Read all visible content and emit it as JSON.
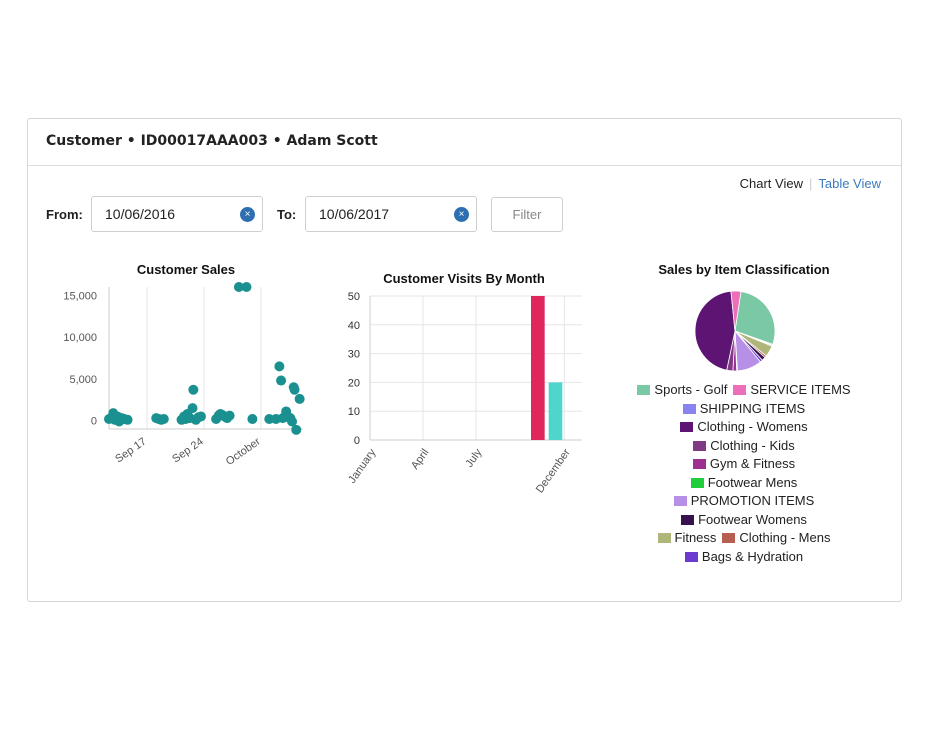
{
  "header": {
    "title": "Customer • ID00017AAA003 • Adam Scott"
  },
  "view_toggle": {
    "chart_view": "Chart View",
    "separator": "|",
    "table_view": "Table View"
  },
  "filters": {
    "from_label": "From:",
    "from_value": "10/06/2016",
    "to_label": "To:",
    "to_value": "10/06/2017",
    "clear_icon": "×",
    "filter_label": "Filter"
  },
  "chart_data": [
    {
      "type": "scatter",
      "title": "Customer Sales",
      "x_ticks": [
        "Sep 17",
        "Sep 24",
        "October"
      ],
      "y_ticks": [
        "0",
        "5,000",
        "10,000",
        "15,000"
      ],
      "ylim": [
        -1000,
        16000
      ],
      "color": "#1a9090",
      "points": [
        [
          0.0,
          200
        ],
        [
          0.5,
          900
        ],
        [
          0.7,
          100
        ],
        [
          1.0,
          500
        ],
        [
          1.2,
          -100
        ],
        [
          1.5,
          300
        ],
        [
          1.8,
          200
        ],
        [
          2.2,
          100
        ],
        [
          5.6,
          300
        ],
        [
          5.9,
          200
        ],
        [
          6.2,
          100
        ],
        [
          6.5,
          200
        ],
        [
          8.6,
          100
        ],
        [
          8.9,
          500
        ],
        [
          9.1,
          200
        ],
        [
          9.3,
          800
        ],
        [
          9.6,
          300
        ],
        [
          9.9,
          1500
        ],
        [
          10.0,
          3700
        ],
        [
          10.3,
          100
        ],
        [
          10.6,
          400
        ],
        [
          10.9,
          500
        ],
        [
          12.7,
          200
        ],
        [
          13.0,
          600
        ],
        [
          13.2,
          800
        ],
        [
          13.4,
          700
        ],
        [
          13.7,
          500
        ],
        [
          14.0,
          300
        ],
        [
          14.3,
          600
        ],
        [
          15.4,
          16000
        ],
        [
          16.3,
          16000
        ],
        [
          17.0,
          200
        ],
        [
          19.0,
          200
        ],
        [
          19.8,
          200
        ],
        [
          20.2,
          6500
        ],
        [
          20.4,
          4800
        ],
        [
          20.6,
          300
        ],
        [
          21.0,
          1100
        ],
        [
          21.3,
          400
        ],
        [
          21.5,
          300
        ],
        [
          21.7,
          -100
        ],
        [
          21.9,
          4000
        ],
        [
          22.0,
          3700
        ],
        [
          22.2,
          -1100
        ],
        [
          22.6,
          2600
        ]
      ]
    },
    {
      "type": "bar",
      "title": "Customer Visits By Month",
      "x_ticks": [
        "January",
        "April",
        "July",
        "December"
      ],
      "y_ticks": [
        "0",
        "10",
        "20",
        "30",
        "40",
        "50"
      ],
      "ylim": [
        0,
        50
      ],
      "bars": [
        {
          "month_index": 9,
          "value": 50,
          "color": "#e0265a"
        },
        {
          "month_index": 10,
          "value": 20,
          "color": "#4fd6cc"
        }
      ]
    },
    {
      "type": "pie",
      "title": "Sales by Item Classification",
      "slices": [
        {
          "name": "Sports - Golf",
          "value": 28,
          "color": "#7bc8a4"
        },
        {
          "name": "SERVICE ITEMS",
          "value": 0.4,
          "color": "#ee6fb9"
        },
        {
          "name": "SHIPPING ITEMS",
          "value": 0.4,
          "color": "#8a82ef"
        },
        {
          "name": "Fitness",
          "value": 4.5,
          "color": "#b0b57a"
        },
        {
          "name": "Clothing - Mens",
          "value": 0.8,
          "color": "#b85e50"
        },
        {
          "name": "Footwear Womens",
          "value": 1.5,
          "color": "#34124d"
        },
        {
          "name": "Bags & Hydration",
          "value": 1.0,
          "color": "#6d3ad0"
        },
        {
          "name": "PROMOTION ITEMS",
          "value": 10,
          "color": "#b78fe6"
        },
        {
          "name": "Footwear Mens",
          "value": 0.3,
          "color": "#1fce3a"
        },
        {
          "name": "Gym & Fitness",
          "value": 1.5,
          "color": "#9c2f92"
        },
        {
          "name": "Clothing - Kids",
          "value": 2.5,
          "color": "#7f3a86"
        },
        {
          "name": "Clothing - Womens",
          "value": 45,
          "color": "#5e1473"
        },
        {
          "name": "SERVICE ITEMS",
          "value": 4,
          "color": "#ee6fb9"
        }
      ],
      "legend": [
        {
          "name": "Sports - Golf",
          "color": "#7bc8a4"
        },
        {
          "name": "SERVICE ITEMS",
          "color": "#ee6fb9"
        },
        {
          "name": "SHIPPING ITEMS",
          "color": "#8a82ef"
        },
        {
          "name": "Clothing - Womens",
          "color": "#5e1473"
        },
        {
          "name": "Clothing - Kids",
          "color": "#7f3a86"
        },
        {
          "name": "Gym & Fitness",
          "color": "#9c2f92"
        },
        {
          "name": "Footwear Mens",
          "color": "#1fce3a"
        },
        {
          "name": "PROMOTION ITEMS",
          "color": "#b78fe6"
        },
        {
          "name": "Footwear Womens",
          "color": "#34124d"
        },
        {
          "name": "Fitness",
          "color": "#b0b57a"
        },
        {
          "name": "Clothing - Mens",
          "color": "#b85e50"
        },
        {
          "name": "Bags & Hydration",
          "color": "#6d3ad0"
        }
      ],
      "legend_rows": [
        [
          0,
          1
        ],
        [
          2
        ],
        [
          3
        ],
        [
          4
        ],
        [
          5
        ],
        [
          6
        ],
        [
          7
        ],
        [
          8
        ],
        [
          9,
          10
        ],
        [
          11
        ]
      ]
    }
  ]
}
